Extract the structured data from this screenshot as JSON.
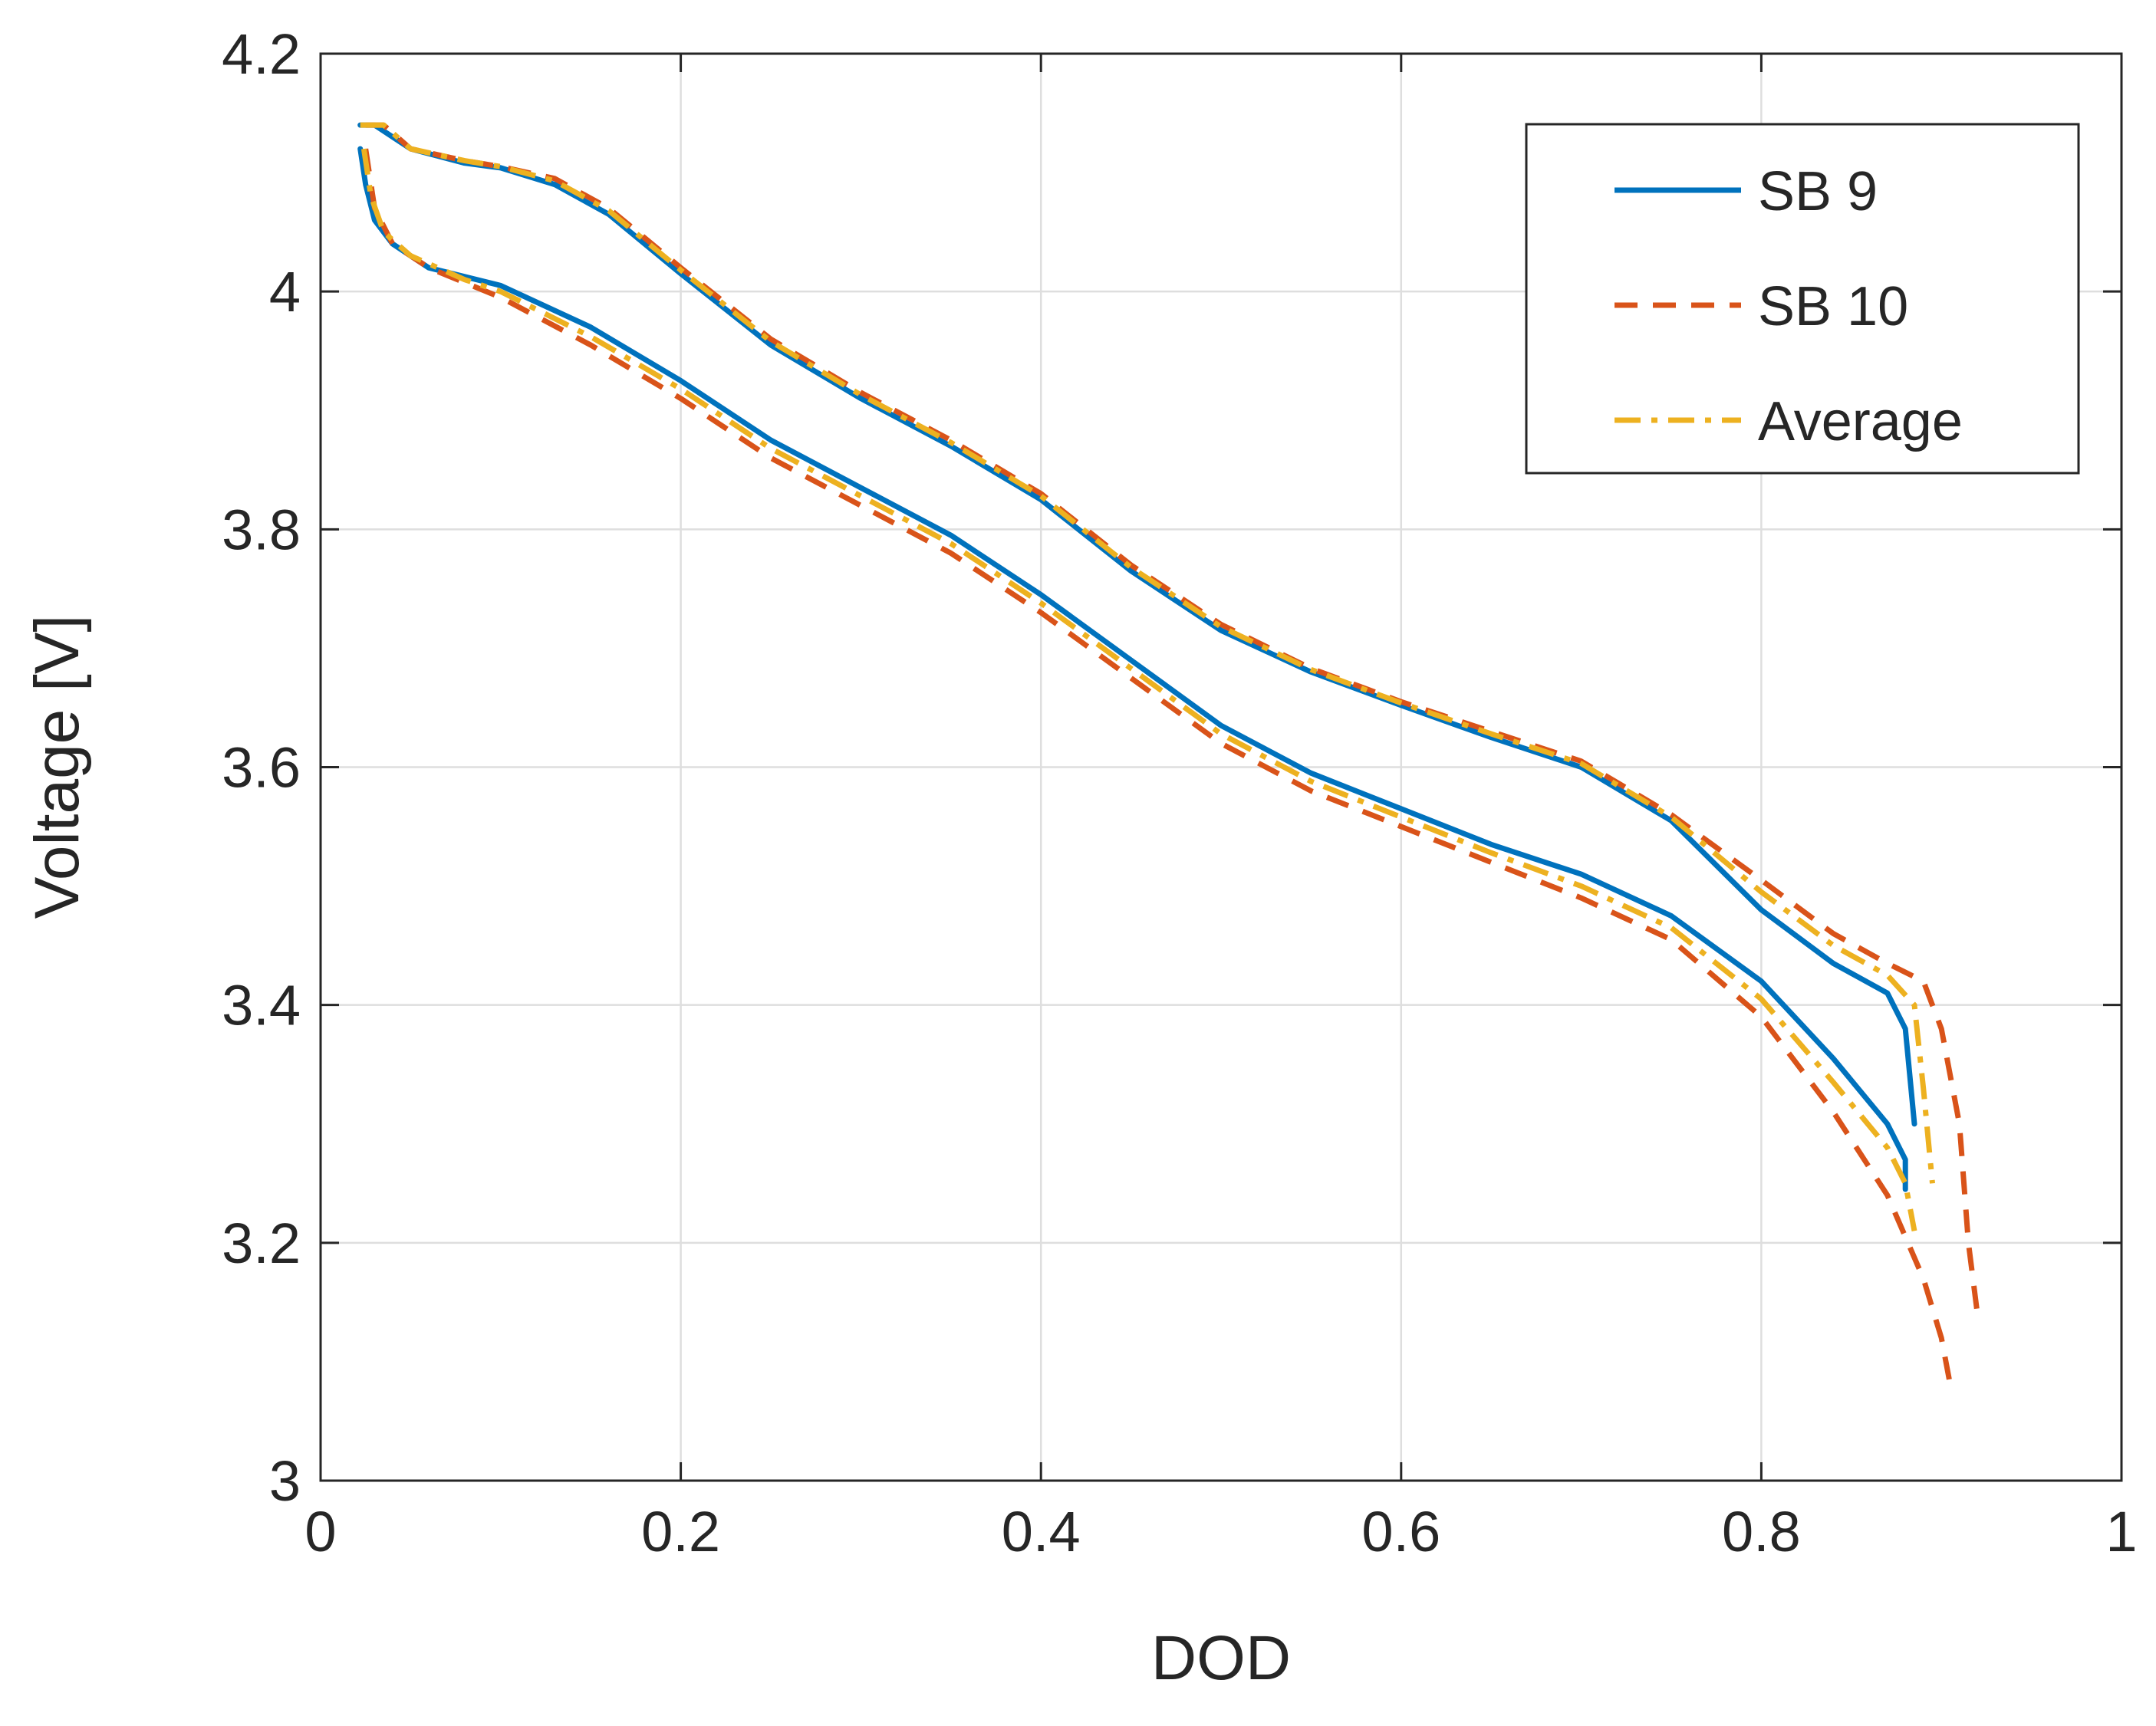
{
  "chart_data": {
    "type": "line",
    "title": "",
    "xlabel": "DOD",
    "ylabel": "Voltage [V]",
    "xlim": [
      0,
      1
    ],
    "ylim": [
      3,
      4.2
    ],
    "grid": true,
    "legend_position": "top-right",
    "x_ticks": [
      0,
      0.2,
      0.4,
      0.6,
      0.8,
      1
    ],
    "x_tick_labels": [
      "0",
      "0.2",
      "0.4",
      "0.6",
      "0.8",
      "1"
    ],
    "y_ticks": [
      3,
      3.2,
      3.4,
      3.6,
      3.8,
      4,
      4.2
    ],
    "y_tick_labels": [
      "3",
      "3.2",
      "3.4",
      "3.6",
      "3.8",
      "4",
      "4.2"
    ],
    "series": [
      {
        "name": "SB 9",
        "color": "#0072BD",
        "dash": "solid",
        "upper": [
          [
            0.022,
            4.14
          ],
          [
            0.03,
            4.14
          ],
          [
            0.05,
            4.12
          ],
          [
            0.08,
            4.108
          ],
          [
            0.1,
            4.104
          ],
          [
            0.13,
            4.09
          ],
          [
            0.16,
            4.065
          ],
          [
            0.2,
            4.015
          ],
          [
            0.25,
            3.955
          ],
          [
            0.3,
            3.91
          ],
          [
            0.35,
            3.87
          ],
          [
            0.4,
            3.825
          ],
          [
            0.45,
            3.765
          ],
          [
            0.5,
            3.715
          ],
          [
            0.55,
            3.68
          ],
          [
            0.6,
            3.652
          ],
          [
            0.65,
            3.625
          ],
          [
            0.7,
            3.6
          ],
          [
            0.75,
            3.555
          ],
          [
            0.8,
            3.48
          ],
          [
            0.84,
            3.435
          ],
          [
            0.87,
            3.41
          ],
          [
            0.88,
            3.38
          ],
          [
            0.885,
            3.3
          ]
        ],
        "lower": [
          [
            0.022,
            4.12
          ],
          [
            0.025,
            4.09
          ],
          [
            0.03,
            4.06
          ],
          [
            0.04,
            4.04
          ],
          [
            0.06,
            4.02
          ],
          [
            0.1,
            4.005
          ],
          [
            0.15,
            3.97
          ],
          [
            0.2,
            3.925
          ],
          [
            0.25,
            3.875
          ],
          [
            0.3,
            3.835
          ],
          [
            0.35,
            3.795
          ],
          [
            0.4,
            3.745
          ],
          [
            0.45,
            3.69
          ],
          [
            0.5,
            3.635
          ],
          [
            0.55,
            3.595
          ],
          [
            0.6,
            3.565
          ],
          [
            0.65,
            3.535
          ],
          [
            0.7,
            3.51
          ],
          [
            0.75,
            3.475
          ],
          [
            0.8,
            3.42
          ],
          [
            0.84,
            3.355
          ],
          [
            0.87,
            3.3
          ],
          [
            0.88,
            3.27
          ],
          [
            0.88,
            3.245
          ]
        ]
      },
      {
        "name": "SB 10",
        "color": "#D95319",
        "dash": "dashed",
        "upper": [
          [
            0.025,
            4.14
          ],
          [
            0.035,
            4.14
          ],
          [
            0.05,
            4.12
          ],
          [
            0.08,
            4.11
          ],
          [
            0.1,
            4.105
          ],
          [
            0.13,
            4.095
          ],
          [
            0.16,
            4.07
          ],
          [
            0.2,
            4.02
          ],
          [
            0.25,
            3.96
          ],
          [
            0.3,
            3.915
          ],
          [
            0.35,
            3.875
          ],
          [
            0.4,
            3.83
          ],
          [
            0.45,
            3.77
          ],
          [
            0.5,
            3.72
          ],
          [
            0.55,
            3.683
          ],
          [
            0.6,
            3.655
          ],
          [
            0.65,
            3.63
          ],
          [
            0.7,
            3.605
          ],
          [
            0.75,
            3.56
          ],
          [
            0.8,
            3.505
          ],
          [
            0.84,
            3.46
          ],
          [
            0.87,
            3.435
          ],
          [
            0.89,
            3.42
          ],
          [
            0.9,
            3.38
          ],
          [
            0.91,
            3.3
          ],
          [
            0.915,
            3.2
          ],
          [
            0.92,
            3.14
          ]
        ],
        "lower": [
          [
            0.025,
            4.12
          ],
          [
            0.03,
            4.07
          ],
          [
            0.04,
            4.04
          ],
          [
            0.06,
            4.02
          ],
          [
            0.1,
            3.995
          ],
          [
            0.15,
            3.955
          ],
          [
            0.2,
            3.91
          ],
          [
            0.25,
            3.86
          ],
          [
            0.3,
            3.82
          ],
          [
            0.35,
            3.78
          ],
          [
            0.4,
            3.73
          ],
          [
            0.45,
            3.675
          ],
          [
            0.5,
            3.62
          ],
          [
            0.55,
            3.58
          ],
          [
            0.6,
            3.55
          ],
          [
            0.65,
            3.52
          ],
          [
            0.7,
            3.49
          ],
          [
            0.75,
            3.455
          ],
          [
            0.8,
            3.39
          ],
          [
            0.84,
            3.31
          ],
          [
            0.87,
            3.24
          ],
          [
            0.89,
            3.17
          ],
          [
            0.9,
            3.12
          ],
          [
            0.905,
            3.08
          ]
        ]
      },
      {
        "name": "Average",
        "color": "#EDB120",
        "dash": "dashdot",
        "upper": [
          [
            0.022,
            4.14
          ],
          [
            0.035,
            4.14
          ],
          [
            0.05,
            4.12
          ],
          [
            0.08,
            4.11
          ],
          [
            0.1,
            4.105
          ],
          [
            0.13,
            4.093
          ],
          [
            0.16,
            4.068
          ],
          [
            0.2,
            4.018
          ],
          [
            0.25,
            3.958
          ],
          [
            0.3,
            3.913
          ],
          [
            0.35,
            3.873
          ],
          [
            0.4,
            3.828
          ],
          [
            0.45,
            3.768
          ],
          [
            0.5,
            3.718
          ],
          [
            0.55,
            3.682
          ],
          [
            0.6,
            3.654
          ],
          [
            0.65,
            3.628
          ],
          [
            0.7,
            3.603
          ],
          [
            0.75,
            3.558
          ],
          [
            0.8,
            3.495
          ],
          [
            0.84,
            3.45
          ],
          [
            0.87,
            3.425
          ],
          [
            0.885,
            3.4
          ],
          [
            0.89,
            3.33
          ],
          [
            0.895,
            3.25
          ]
        ],
        "lower": [
          [
            0.024,
            4.12
          ],
          [
            0.028,
            4.08
          ],
          [
            0.035,
            4.05
          ],
          [
            0.05,
            4.03
          ],
          [
            0.08,
            4.01
          ],
          [
            0.1,
            4.0
          ],
          [
            0.15,
            3.962
          ],
          [
            0.2,
            3.918
          ],
          [
            0.25,
            3.868
          ],
          [
            0.3,
            3.828
          ],
          [
            0.35,
            3.788
          ],
          [
            0.4,
            3.738
          ],
          [
            0.45,
            3.683
          ],
          [
            0.5,
            3.628
          ],
          [
            0.55,
            3.588
          ],
          [
            0.6,
            3.558
          ],
          [
            0.65,
            3.528
          ],
          [
            0.7,
            3.5
          ],
          [
            0.75,
            3.465
          ],
          [
            0.8,
            3.405
          ],
          [
            0.84,
            3.335
          ],
          [
            0.87,
            3.28
          ],
          [
            0.88,
            3.25
          ],
          [
            0.885,
            3.21
          ]
        ]
      }
    ]
  }
}
